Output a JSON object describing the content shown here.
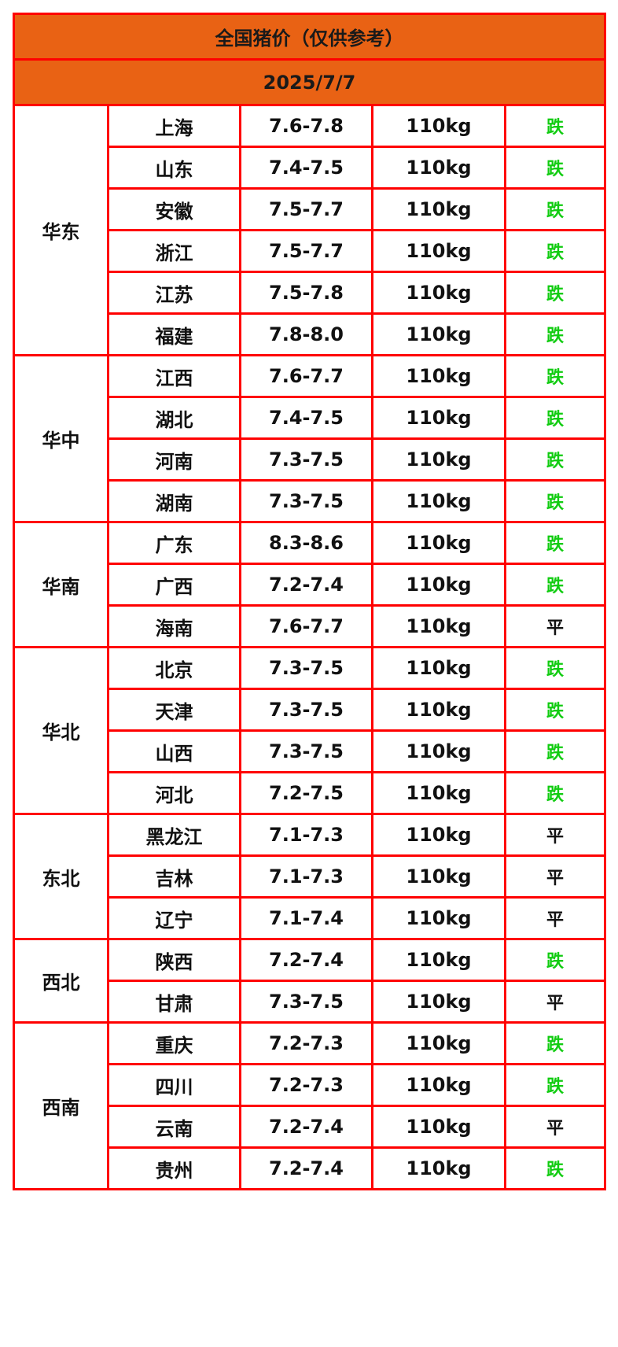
{
  "title": "全国猪价（仅供参考）",
  "date": "2025/7/7",
  "colors": {
    "header_bg": "#e96214",
    "border": "#ff0000",
    "fall": "#11cc11",
    "flat": "#111111"
  },
  "regions": [
    {
      "name": "华东",
      "rows": [
        {
          "province": "上海",
          "price": "7.6-7.8",
          "weight": "110kg",
          "trend": "跌"
        },
        {
          "province": "山东",
          "price": "7.4-7.5",
          "weight": "110kg",
          "trend": "跌"
        },
        {
          "province": "安徽",
          "price": "7.5-7.7",
          "weight": "110kg",
          "trend": "跌"
        },
        {
          "province": "浙江",
          "price": "7.5-7.7",
          "weight": "110kg",
          "trend": "跌"
        },
        {
          "province": "江苏",
          "price": "7.5-7.8",
          "weight": "110kg",
          "trend": "跌"
        },
        {
          "province": "福建",
          "price": "7.8-8.0",
          "weight": "110kg",
          "trend": "跌"
        }
      ]
    },
    {
      "name": "华中",
      "rows": [
        {
          "province": "江西",
          "price": "7.6-7.7",
          "weight": "110kg",
          "trend": "跌"
        },
        {
          "province": "湖北",
          "price": "7.4-7.5",
          "weight": "110kg",
          "trend": "跌"
        },
        {
          "province": "河南",
          "price": "7.3-7.5",
          "weight": "110kg",
          "trend": "跌"
        },
        {
          "province": "湖南",
          "price": "7.3-7.5",
          "weight": "110kg",
          "trend": "跌"
        }
      ]
    },
    {
      "name": "华南",
      "rows": [
        {
          "province": "广东",
          "price": "8.3-8.6",
          "weight": "110kg",
          "trend": "跌"
        },
        {
          "province": "广西",
          "price": "7.2-7.4",
          "weight": "110kg",
          "trend": "跌"
        },
        {
          "province": "海南",
          "price": "7.6-7.7",
          "weight": "110kg",
          "trend": "平"
        }
      ]
    },
    {
      "name": "华北",
      "rows": [
        {
          "province": "北京",
          "price": "7.3-7.5",
          "weight": "110kg",
          "trend": "跌"
        },
        {
          "province": "天津",
          "price": "7.3-7.5",
          "weight": "110kg",
          "trend": "跌"
        },
        {
          "province": "山西",
          "price": "7.3-7.5",
          "weight": "110kg",
          "trend": "跌"
        },
        {
          "province": "河北",
          "price": "7.2-7.5",
          "weight": "110kg",
          "trend": "跌"
        }
      ]
    },
    {
      "name": "东北",
      "rows": [
        {
          "province": "黑龙江",
          "price": "7.1-7.3",
          "weight": "110kg",
          "trend": "平"
        },
        {
          "province": "吉林",
          "price": "7.1-7.3",
          "weight": "110kg",
          "trend": "平"
        },
        {
          "province": "辽宁",
          "price": "7.1-7.4",
          "weight": "110kg",
          "trend": "平"
        }
      ]
    },
    {
      "name": "西北",
      "rows": [
        {
          "province": "陕西",
          "price": "7.2-7.4",
          "weight": "110kg",
          "trend": "跌"
        },
        {
          "province": "甘肃",
          "price": "7.3-7.5",
          "weight": "110kg",
          "trend": "平"
        }
      ]
    },
    {
      "name": "西南",
      "rows": [
        {
          "province": "重庆",
          "price": "7.2-7.3",
          "weight": "110kg",
          "trend": "跌"
        },
        {
          "province": "四川",
          "price": "7.2-7.3",
          "weight": "110kg",
          "trend": "跌"
        },
        {
          "province": "云南",
          "price": "7.2-7.4",
          "weight": "110kg",
          "trend": "平"
        },
        {
          "province": "贵州",
          "price": "7.2-7.4",
          "weight": "110kg",
          "trend": "跌"
        }
      ]
    }
  ]
}
